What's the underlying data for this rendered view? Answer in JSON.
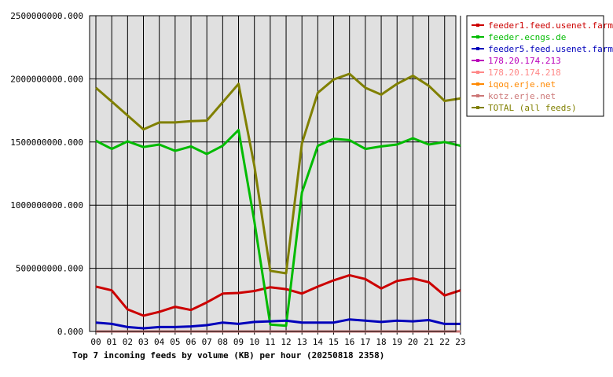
{
  "chart_data": {
    "type": "line",
    "title": "Top 7 incoming feeds by volume (KB) per hour (20250818 2358)",
    "xlabel": "",
    "ylabel": "",
    "ylim": [
      0,
      2500000000
    ],
    "yticks": [
      "0.000",
      "500000000.000",
      "1000000000.000",
      "1500000000.000",
      "2000000000.000",
      "2500000000.000"
    ],
    "categories": [
      "00",
      "01",
      "02",
      "03",
      "04",
      "05",
      "06",
      "07",
      "08",
      "09",
      "10",
      "11",
      "12",
      "13",
      "14",
      "15",
      "16",
      "17",
      "18",
      "19",
      "20",
      "21",
      "22",
      "23"
    ],
    "grid": true,
    "legend_position": "right",
    "series": [
      {
        "name": "feeder1.feed.usenet.farm",
        "color": "#cc0000",
        "values": [
          355000000,
          325000000,
          175000000,
          125000000,
          155000000,
          195000000,
          170000000,
          230000000,
          300000000,
          305000000,
          320000000,
          350000000,
          335000000,
          300000000,
          355000000,
          405000000,
          445000000,
          415000000,
          340000000,
          400000000,
          420000000,
          390000000,
          285000000,
          325000000
        ]
      },
      {
        "name": "feeder.ecngs.de",
        "color": "#00bb00",
        "values": [
          1510000000,
          1445000000,
          1505000000,
          1460000000,
          1480000000,
          1430000000,
          1465000000,
          1405000000,
          1470000000,
          1595000000,
          870000000,
          55000000,
          45000000,
          1100000000,
          1470000000,
          1525000000,
          1515000000,
          1445000000,
          1465000000,
          1480000000,
          1530000000,
          1480000000,
          1500000000,
          1470000000
        ]
      },
      {
        "name": "feeder5.feed.usenet.farm",
        "color": "#0000bb",
        "values": [
          70000000,
          60000000,
          35000000,
          25000000,
          35000000,
          35000000,
          40000000,
          50000000,
          70000000,
          60000000,
          75000000,
          80000000,
          85000000,
          70000000,
          70000000,
          70000000,
          95000000,
          85000000,
          75000000,
          85000000,
          80000000,
          90000000,
          60000000,
          60000000
        ]
      },
      {
        "name": "178.20.174.213",
        "color": "#bb00bb",
        "values": [
          0,
          0,
          0,
          0,
          0,
          0,
          0,
          0,
          0,
          0,
          0,
          0,
          0,
          0,
          0,
          0,
          0,
          0,
          0,
          0,
          0,
          0,
          0,
          0
        ]
      },
      {
        "name": "178.20.174.218",
        "color": "#ff8888",
        "values": [
          0,
          0,
          0,
          0,
          0,
          0,
          0,
          0,
          0,
          0,
          0,
          0,
          0,
          0,
          0,
          0,
          0,
          0,
          0,
          0,
          0,
          0,
          0,
          0
        ]
      },
      {
        "name": "iqoq.erje.net",
        "color": "#ff8800",
        "values": [
          0,
          0,
          0,
          0,
          0,
          0,
          0,
          0,
          0,
          0,
          0,
          0,
          0,
          0,
          0,
          0,
          0,
          0,
          0,
          0,
          0,
          0,
          0,
          0
        ]
      },
      {
        "name": "kotz.erje.net",
        "color": "#cc7777",
        "values": [
          0,
          0,
          0,
          0,
          0,
          0,
          0,
          0,
          0,
          0,
          0,
          0,
          0,
          0,
          0,
          0,
          0,
          0,
          0,
          0,
          0,
          0,
          0,
          0
        ]
      },
      {
        "name": "TOTAL (all feeds)",
        "color": "#808000",
        "values": [
          1930000000,
          1820000000,
          1710000000,
          1600000000,
          1655000000,
          1655000000,
          1665000000,
          1670000000,
          1815000000,
          1960000000,
          1310000000,
          480000000,
          460000000,
          1490000000,
          1890000000,
          1995000000,
          2040000000,
          1930000000,
          1875000000,
          1960000000,
          2025000000,
          1945000000,
          1825000000,
          1845000000
        ]
      }
    ]
  }
}
